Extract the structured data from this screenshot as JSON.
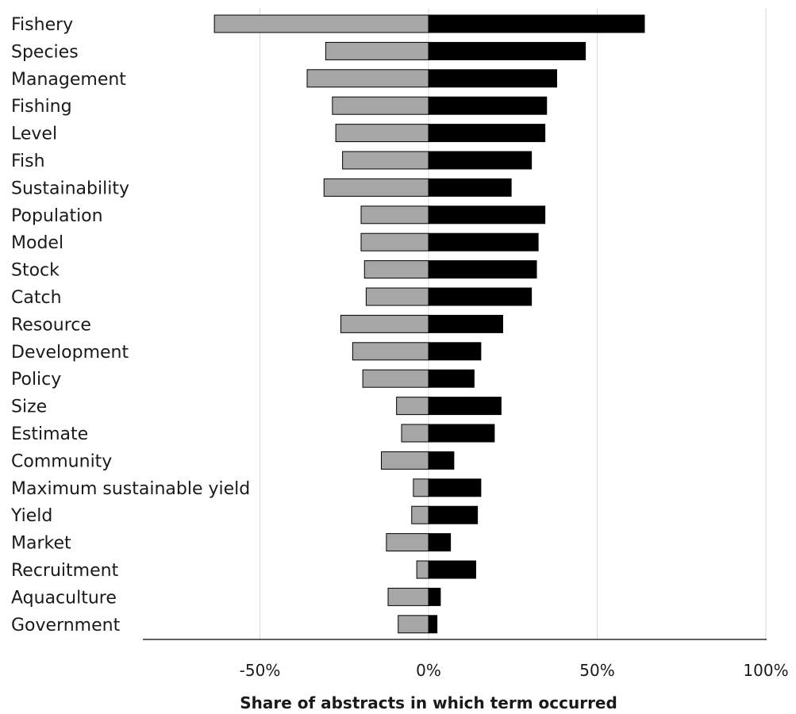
{
  "colors": {
    "negative": "#a6a6a6",
    "positive": "#000000",
    "grid": "#d9d9d9",
    "axis": "#000000"
  },
  "chart_data": {
    "type": "bar",
    "orientation": "horizontal-diverging",
    "title": "",
    "xlabel": "Share of abstracts in which term occurred",
    "ylabel": "",
    "xlim": [
      -85,
      100
    ],
    "xticks": [
      -50,
      0,
      50,
      100
    ],
    "xtick_labels": [
      "-50%",
      "0%",
      "50%",
      "100%"
    ],
    "grid": true,
    "categories": [
      "Fishery",
      "Species",
      "Management",
      "Fishing",
      "Level",
      "Fish",
      "Sustainability",
      "Population",
      "Model",
      "Stock",
      "Catch",
      "Resource",
      "Development",
      "Policy",
      "Size",
      "Estimate",
      "Community",
      "Maximum sustainable yield",
      "Yield",
      "Market",
      "Recruitment",
      "Aquaculture",
      "Government"
    ],
    "series": [
      {
        "values": [
          -63.5,
          -30.5,
          -36,
          -28.5,
          -27.5,
          -25.5,
          -31,
          -20,
          -20,
          -19,
          -18.5,
          -26,
          -22.5,
          -19.5,
          -9.5,
          -8,
          -14,
          -4.5,
          -5,
          -12.5,
          -3.5,
          -12,
          -9
        ]
      },
      {
        "values": [
          64,
          46.5,
          38,
          35,
          34.5,
          30.5,
          24.5,
          34.5,
          32.5,
          32,
          30.5,
          22,
          15.5,
          13.5,
          21.5,
          19.5,
          7.5,
          15.5,
          14.5,
          6.5,
          14,
          3.5,
          2.5
        ]
      }
    ]
  }
}
